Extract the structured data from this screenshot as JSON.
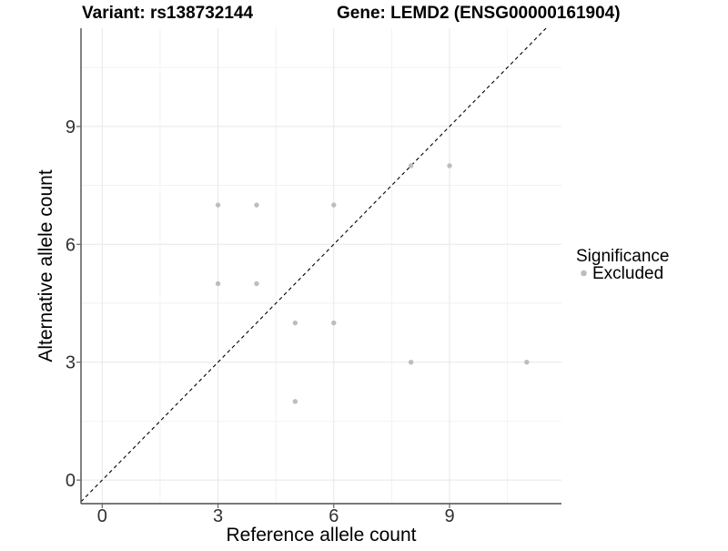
{
  "titles": {
    "variant": "Variant: rs138732144",
    "gene": "Gene: LEMD2 (ENSG00000161904)"
  },
  "legend": {
    "title": "Significance",
    "items": [
      {
        "label": "Excluded",
        "color": "#bdbdbd",
        "marker": "circle"
      }
    ]
  },
  "chart_data": {
    "type": "scatter",
    "title_left": "Variant: rs138732144",
    "title_right": "Gene: LEMD2 (ENSG00000161904)",
    "xlabel": "Reference allele count",
    "ylabel": "Alternative allele count",
    "series": [
      {
        "name": "Excluded",
        "color": "#bdbdbd",
        "points": [
          [
            3,
            7
          ],
          [
            4,
            7
          ],
          [
            6,
            7
          ],
          [
            3,
            5
          ],
          [
            4,
            5
          ],
          [
            5,
            4
          ],
          [
            6,
            4
          ],
          [
            5,
            2
          ],
          [
            8,
            3
          ],
          [
            11,
            3
          ],
          [
            8,
            8
          ],
          [
            9,
            8
          ]
        ]
      }
    ],
    "reference_line": {
      "type": "identity y=x",
      "style": "dashed",
      "color": "#000000"
    },
    "x_ticks": [
      0,
      3,
      6,
      9
    ],
    "y_ticks": [
      0,
      3,
      6,
      9
    ],
    "x_minor": [
      1.5,
      4.5,
      7.5,
      10.5
    ],
    "y_minor": [
      1.5,
      4.5,
      7.5,
      10.5
    ],
    "xlim": [
      -0.55,
      11.9
    ],
    "ylim": [
      -0.6,
      11.5
    ],
    "grid": true,
    "legend_position": "right"
  },
  "style": {
    "background": "#ffffff",
    "point_color": "#bdbdbd",
    "point_radius": 2.7,
    "grid_major_color": "#e7e7e7",
    "grid_minor_color": "#f2f2f2",
    "axis_color": "#4d4d4d",
    "tick_color": "#666666",
    "reference_line_color": "#000000"
  }
}
